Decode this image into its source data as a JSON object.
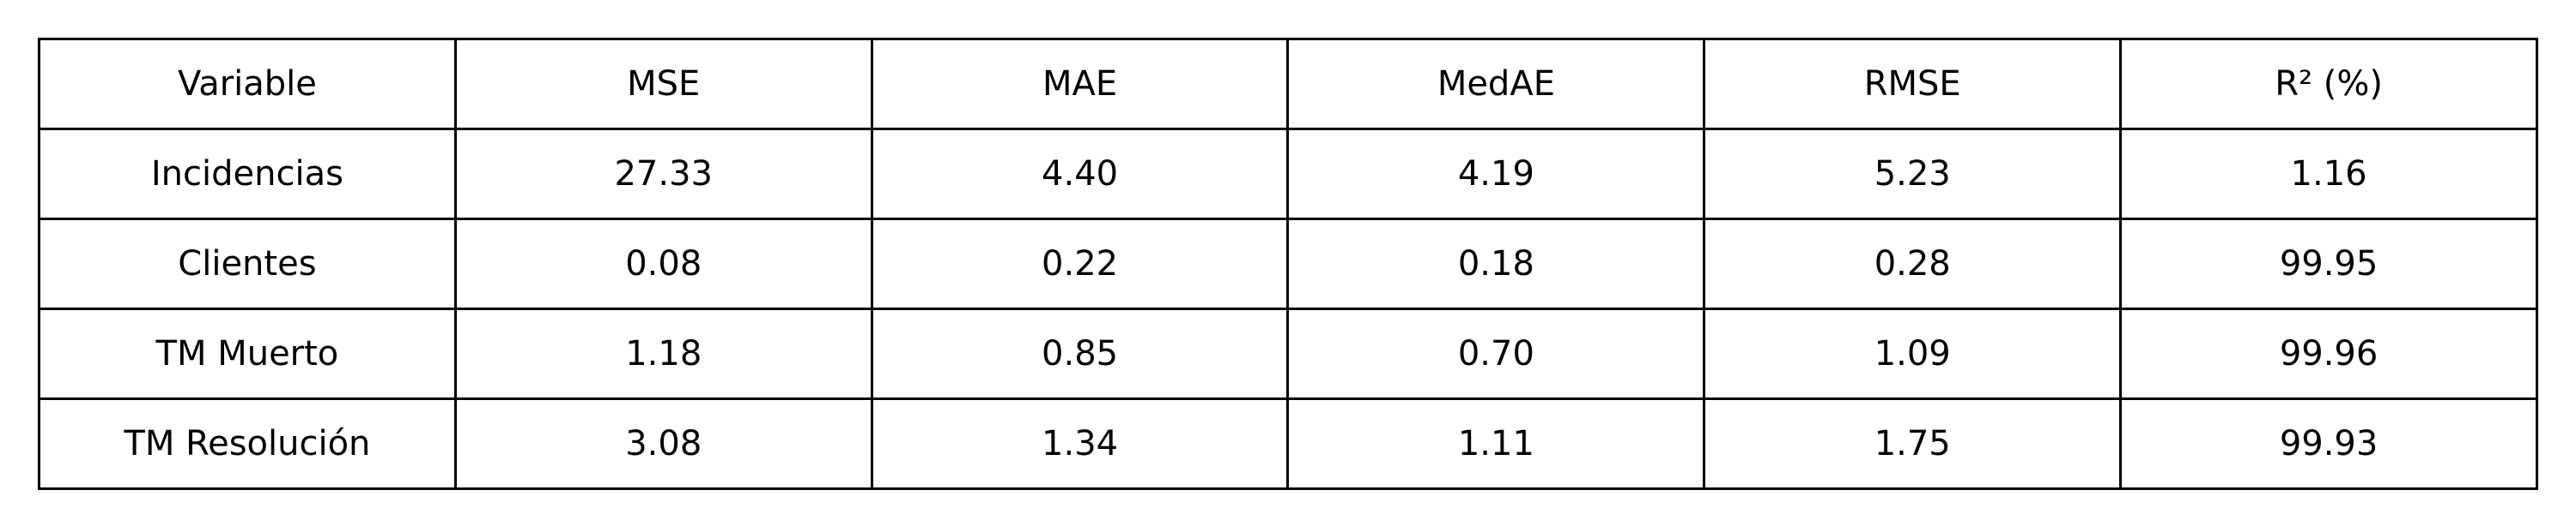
{
  "chart_data": {
    "type": "table",
    "columns": [
      "Variable",
      "MSE",
      "MAE",
      "MedAE",
      "RMSE",
      "R² (%)"
    ],
    "rows": [
      [
        "Incidencias",
        "27.33",
        "4.40",
        "4.19",
        "5.23",
        "1.16"
      ],
      [
        "Clientes",
        "0.08",
        "0.22",
        "0.18",
        "0.28",
        "99.95"
      ],
      [
        "TM Muerto",
        "1.18",
        "0.85",
        "0.70",
        "1.09",
        "99.96"
      ],
      [
        "TM Resolución",
        "3.08",
        "1.34",
        "1.11",
        "1.75",
        "99.93"
      ]
    ]
  }
}
